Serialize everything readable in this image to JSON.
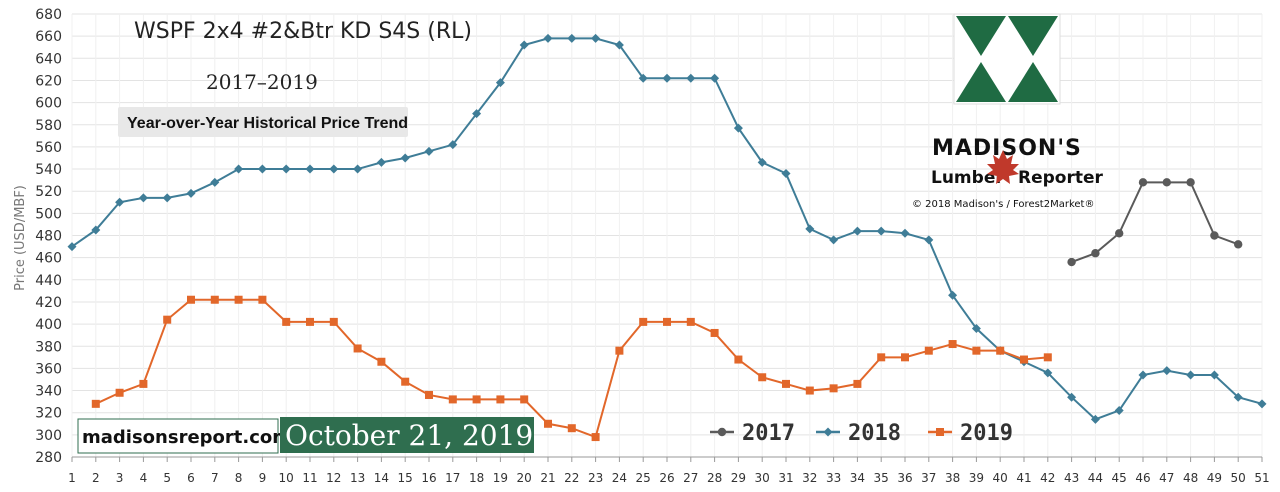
{
  "colors": {
    "s2017": "#5a5a5a",
    "s2018": "#3f7d97",
    "s2019": "#e2672a",
    "banner_green": "#2f6e4f",
    "logo_green": "#1f6b43",
    "leaf_red": "#c0392b"
  },
  "header": {
    "title": "WSPF 2x4 #2&Btr KD S4S (RL)",
    "years": "2017–2019",
    "trend": "Year-over-Year Historical Price Trend"
  },
  "brand": {
    "name": "MADISON'S",
    "sub_left": "Lumber",
    "sub_right": "Reporter",
    "copyright": "© 2018 Madison's / Forest2Market®"
  },
  "banner": {
    "site": "madisonsreport.com",
    "date": "October 21, 2019"
  },
  "chart_data": {
    "type": "line",
    "title": "WSPF 2x4 #2&Btr KD S4S (RL)",
    "subtitle": "2017–2019",
    "xlabel": "",
    "ylabel": "Price (USD/MBF)",
    "xlim": [
      1,
      51
    ],
    "ylim": [
      280,
      680
    ],
    "y_ticks": [
      280,
      300,
      320,
      340,
      360,
      380,
      400,
      420,
      440,
      460,
      480,
      500,
      520,
      540,
      560,
      580,
      600,
      620,
      640,
      660,
      680
    ],
    "x_ticks": [
      1,
      2,
      3,
      4,
      5,
      6,
      7,
      8,
      9,
      10,
      11,
      12,
      13,
      14,
      15,
      16,
      17,
      18,
      19,
      20,
      21,
      22,
      23,
      24,
      25,
      26,
      27,
      28,
      29,
      30,
      31,
      32,
      33,
      34,
      35,
      36,
      37,
      38,
      39,
      40,
      41,
      42,
      43,
      44,
      45,
      46,
      47,
      48,
      49,
      50,
      51
    ],
    "grid": true,
    "legend_position": "bottom-right",
    "series": [
      {
        "name": "2017",
        "marker": "circle",
        "x": [
          43,
          44,
          45,
          46,
          47,
          48,
          49,
          50
        ],
        "values": [
          456,
          464,
          482,
          528,
          528,
          528,
          480,
          472
        ]
      },
      {
        "name": "2018",
        "marker": "diamond",
        "x": [
          1,
          2,
          3,
          4,
          5,
          6,
          7,
          8,
          9,
          10,
          11,
          12,
          13,
          14,
          15,
          16,
          17,
          18,
          19,
          20,
          21,
          22,
          23,
          24,
          25,
          26,
          27,
          28,
          29,
          30,
          31,
          32,
          33,
          34,
          35,
          36,
          37,
          38,
          39,
          40,
          41,
          42,
          43,
          44,
          45,
          46,
          47,
          48,
          49,
          50,
          51
        ],
        "values": [
          470,
          485,
          510,
          514,
          514,
          518,
          528,
          540,
          540,
          540,
          540,
          540,
          540,
          546,
          550,
          556,
          562,
          590,
          618,
          652,
          658,
          658,
          658,
          652,
          622,
          622,
          622,
          622,
          577,
          546,
          536,
          486,
          476,
          484,
          484,
          482,
          476,
          426,
          396,
          376,
          366,
          356,
          334,
          314,
          322,
          354,
          358,
          354,
          354,
          334,
          328
        ]
      },
      {
        "name": "2019",
        "marker": "square",
        "x": [
          2,
          3,
          4,
          5,
          6,
          7,
          8,
          9,
          10,
          11,
          12,
          13,
          14,
          15,
          16,
          17,
          18,
          19,
          20,
          21,
          22,
          23,
          24,
          25,
          26,
          27,
          28,
          29,
          30,
          31,
          32,
          33,
          34,
          35,
          36,
          37,
          38,
          39,
          40,
          41,
          42
        ],
        "values": [
          328,
          338,
          346,
          404,
          422,
          422,
          422,
          422,
          402,
          402,
          402,
          378,
          366,
          348,
          336,
          332,
          332,
          332,
          332,
          310,
          306,
          298,
          376,
          402,
          402,
          402,
          392,
          368,
          352,
          346,
          340,
          342,
          346,
          370,
          370,
          376,
          382,
          376,
          376,
          368,
          370
        ]
      }
    ]
  }
}
